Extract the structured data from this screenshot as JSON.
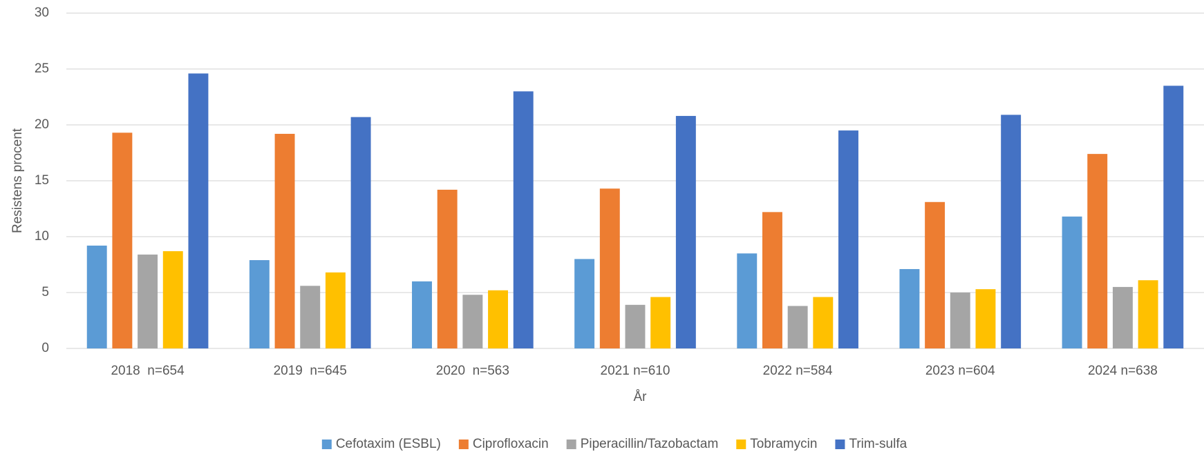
{
  "chart_data": {
    "type": "bar",
    "x_label": "År",
    "y_label": "Resistens procent",
    "categories": [
      "2018  n=654",
      "2019  n=645",
      "2020  n=563",
      "2021 n=610",
      "2022 n=584",
      "2023 n=604",
      "2024 n=638"
    ],
    "series": [
      {
        "name": "Cefotaxim (ESBL)",
        "color": "#5b9bd5",
        "values": [
          9.2,
          7.9,
          6.0,
          8.0,
          8.5,
          7.1,
          11.8
        ]
      },
      {
        "name": "Ciprofloxacin",
        "color": "#ed7d31",
        "values": [
          19.3,
          19.2,
          14.2,
          14.3,
          12.2,
          13.1,
          17.4
        ]
      },
      {
        "name": "Piperacillin/Tazobactam",
        "color": "#a5a5a5",
        "values": [
          8.4,
          5.6,
          4.8,
          3.9,
          3.8,
          5.0,
          5.5
        ]
      },
      {
        "name": "Tobramycin",
        "color": "#ffc000",
        "values": [
          8.7,
          6.8,
          5.2,
          4.6,
          4.6,
          5.3,
          6.1
        ]
      },
      {
        "name": "Trim-sulfa",
        "color": "#4472c4",
        "values": [
          24.6,
          20.7,
          23.0,
          20.8,
          19.5,
          20.9,
          23.5
        ]
      }
    ],
    "ylim": [
      0,
      30
    ],
    "yticks": [
      0,
      5,
      10,
      15,
      20,
      25,
      30
    ],
    "grid": true,
    "legend": "bottom"
  }
}
